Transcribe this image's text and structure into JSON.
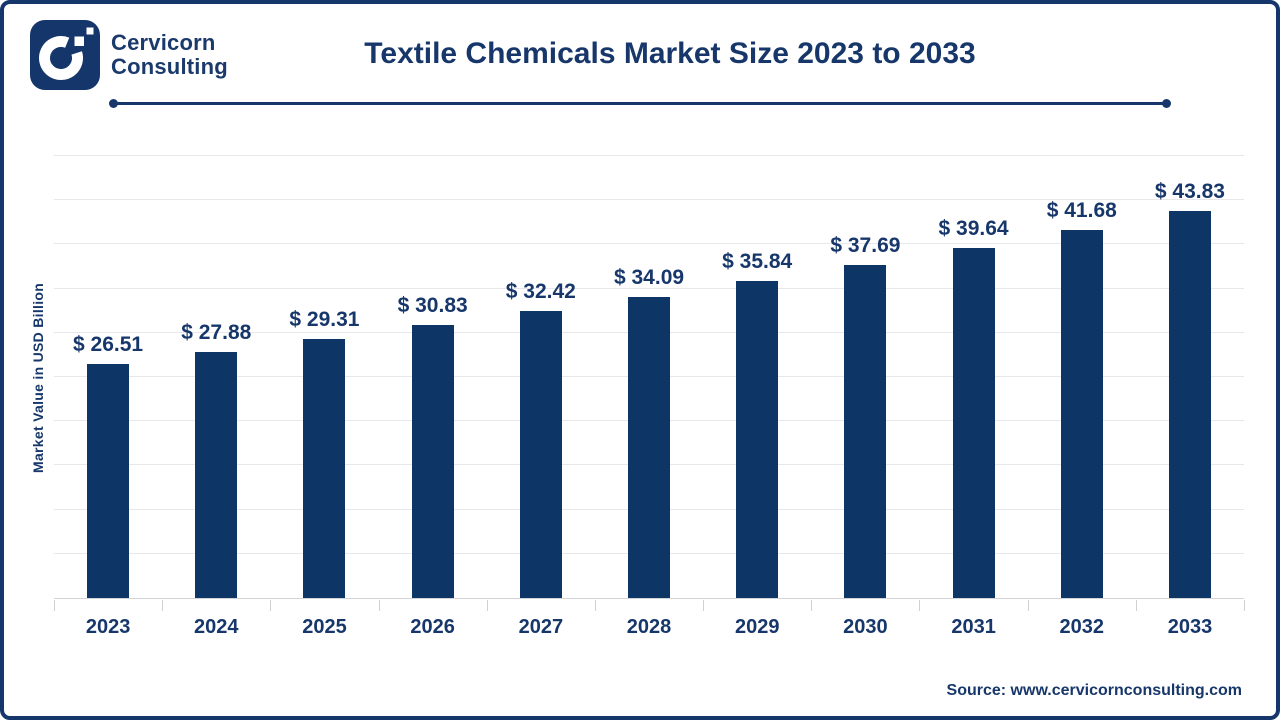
{
  "brand": {
    "line1": "Cervicorn",
    "line2": "Consulting"
  },
  "header": {
    "title": "Textile Chemicals Market Size 2023 to 2033"
  },
  "chart_data": {
    "type": "bar",
    "title": "Textile Chemicals Market Size 2023 to 2033",
    "categories": [
      "2023",
      "2024",
      "2025",
      "2026",
      "2027",
      "2028",
      "2029",
      "2030",
      "2031",
      "2032",
      "2033"
    ],
    "values": [
      26.51,
      27.88,
      29.31,
      30.83,
      32.42,
      34.09,
      35.84,
      37.69,
      39.64,
      41.68,
      43.83
    ],
    "labels": [
      "$ 26.51",
      "$ 27.88",
      "$ 29.31",
      "$ 30.83",
      "$ 32.42",
      "$ 34.09",
      "$ 35.84",
      "$ 37.69",
      "$ 39.64",
      "$ 41.68",
      "$ 43.83"
    ],
    "xlabel": "",
    "ylabel": "Market Value in USD Billion",
    "ylim": [
      0,
      50
    ],
    "gridline_step": 5,
    "grid": "horizontal-only",
    "legend": "none",
    "bar_color": "#0d3565"
  },
  "footer": {
    "source": "Source: www.cervicornconsulting.com"
  },
  "colors": {
    "navy_text": "#17376b",
    "bar": "#0d3565",
    "frame_border": "#14366b",
    "gridline": "#e8e8ec",
    "axis_line": "#d4d4d8",
    "background": "#ffffff"
  },
  "icons": {
    "logo": "cervicorn-c-logo"
  }
}
